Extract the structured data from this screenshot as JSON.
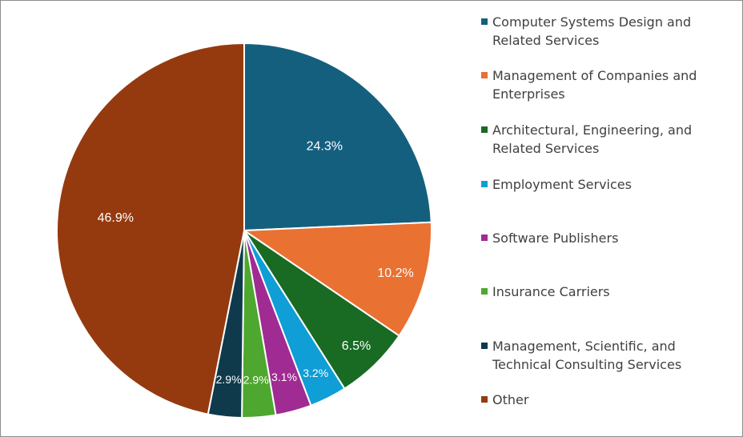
{
  "chart_data": {
    "type": "pie",
    "title": "",
    "legend_position": "right",
    "unit": "%",
    "slices": [
      {
        "label": "Computer Systems Design and Related Services",
        "value": 24.3,
        "data_label": "24.3%",
        "color": "#155f7e"
      },
      {
        "label": "Management of Companies and Enterprises",
        "value": 10.2,
        "data_label": "10.2%",
        "color": "#e97132"
      },
      {
        "label": "Architectural, Engineering, and Related Services",
        "value": 6.5,
        "data_label": "6.5%",
        "color": "#196b24"
      },
      {
        "label": "Employment Services",
        "value": 3.2,
        "data_label": "3.2%",
        "color": "#0f9ed5"
      },
      {
        "label": "Software Publishers",
        "value": 3.1,
        "data_label": "3.1%",
        "color": "#a02b93"
      },
      {
        "label": "Insurance Carriers",
        "value": 2.9,
        "data_label": "2.9%",
        "color": "#4ea72e"
      },
      {
        "label": "Management, Scientific, and Technical Consulting Services",
        "value": 2.9,
        "data_label": "2.9%",
        "color": "#0e3a4c"
      },
      {
        "label": "Other",
        "value": 46.9,
        "data_label": "46.9%",
        "color": "#953a0f"
      }
    ]
  }
}
